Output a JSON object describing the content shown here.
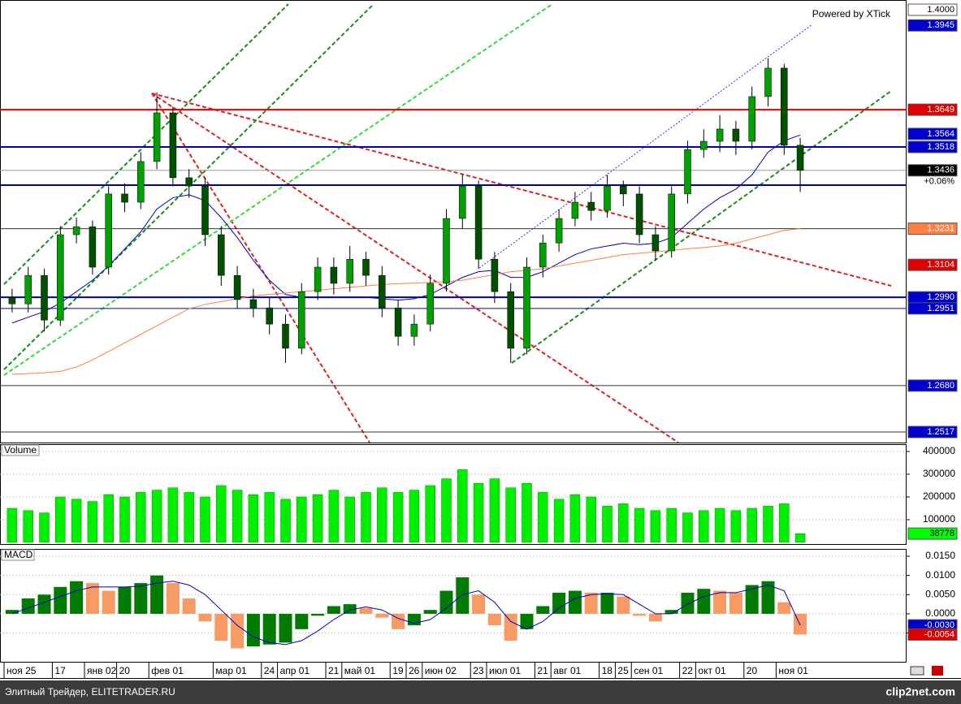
{
  "chart_data": [
    {
      "type": "candlestick",
      "watermark": "Powered by XTick",
      "categories": [
        "ноя 25",
        null,
        null,
        "17",
        null,
        "янв 02",
        null,
        "20",
        null,
        "фев 01",
        null,
        null,
        null,
        "мар 01",
        null,
        null,
        "24",
        "апр 01",
        null,
        null,
        "21",
        "май 01",
        null,
        null,
        "19",
        "26",
        "июн 02",
        null,
        null,
        "23",
        "июл 01",
        null,
        null,
        "21",
        "авг 01",
        null,
        null,
        "18",
        "25",
        "сен 01",
        null,
        null,
        "22",
        "окт 01",
        null,
        null,
        "20",
        null,
        "ноя 01",
        null
      ],
      "open": [
        1.299,
        1.2967,
        1.3067,
        1.291,
        1.321,
        1.3238,
        1.3096,
        1.3353,
        1.3324,
        1.3467,
        1.3638,
        1.341,
        1.3381,
        1.321,
        1.3067,
        1.2982,
        1.2953,
        1.2896,
        1.2811,
        1.301,
        1.3096,
        1.3039,
        1.3124,
        1.3067,
        1.2953,
        1.2853,
        1.2896,
        1.3039,
        1.3267,
        1.3381,
        1.3124,
        1.301,
        1.2811,
        1.3096,
        1.3181,
        1.3267,
        1.3324,
        1.3295,
        1.3381,
        1.3353,
        1.321,
        1.3153,
        1.3353,
        1.3509,
        1.3538,
        1.3581,
        1.3538,
        1.3695,
        1.3795,
        1.3524
      ],
      "high": [
        1.302,
        1.3097,
        1.309,
        1.324,
        1.327,
        1.326,
        1.338,
        1.339,
        1.35,
        1.371,
        1.366,
        1.344,
        1.341,
        1.324,
        1.31,
        1.302,
        1.299,
        1.293,
        1.304,
        1.313,
        1.313,
        1.317,
        1.315,
        1.31,
        1.298,
        1.293,
        1.307,
        1.33,
        1.342,
        1.34,
        1.315,
        1.304,
        1.313,
        1.321,
        1.33,
        1.336,
        1.336,
        1.342,
        1.34,
        1.338,
        1.324,
        1.338,
        1.354,
        1.358,
        1.363,
        1.361,
        1.373,
        1.383,
        1.381,
        1.355
      ],
      "low": [
        1.2937,
        1.2937,
        1.287,
        1.289,
        1.318,
        1.307,
        1.307,
        1.329,
        1.33,
        1.344,
        1.338,
        1.334,
        1.317,
        1.303,
        1.295,
        1.292,
        1.286,
        1.276,
        1.279,
        1.298,
        1.3,
        1.301,
        1.303,
        1.292,
        1.282,
        1.282,
        1.287,
        1.301,
        1.323,
        1.309,
        1.297,
        1.276,
        1.279,
        1.306,
        1.315,
        1.324,
        1.326,
        1.327,
        1.331,
        1.318,
        1.312,
        1.313,
        1.332,
        1.348,
        1.35,
        1.349,
        1.351,
        1.366,
        1.349,
        1.336
      ],
      "close": [
        1.2967,
        1.3067,
        1.291,
        1.321,
        1.3238,
        1.3096,
        1.3353,
        1.3324,
        1.3467,
        1.3638,
        1.341,
        1.3381,
        1.321,
        1.3067,
        1.2982,
        1.2953,
        1.2896,
        1.2811,
        1.301,
        1.3096,
        1.3039,
        1.3124,
        1.3067,
        1.2953,
        1.2853,
        1.2896,
        1.3039,
        1.3267,
        1.3381,
        1.3124,
        1.301,
        1.2811,
        1.3096,
        1.3181,
        1.3267,
        1.3324,
        1.3295,
        1.3381,
        1.3353,
        1.321,
        1.3153,
        1.3353,
        1.3509,
        1.3538,
        1.3581,
        1.3538,
        1.3695,
        1.3795,
        1.3524,
        1.3436
      ],
      "up_color": "#00a000",
      "down_color": "#005000",
      "overlays": [
        {
          "color": "#0000cc",
          "values": [
            1.29,
            1.292,
            1.294,
            1.297,
            1.301,
            1.305,
            1.31,
            1.316,
            1.322,
            1.33,
            1.334,
            1.335,
            1.333,
            1.327,
            1.32,
            1.312,
            1.305,
            1.3,
            1.299,
            1.299,
            1.299,
            1.299,
            1.299,
            1.2985,
            1.298,
            1.2985,
            1.3,
            1.303,
            1.306,
            1.308,
            1.3085,
            1.306,
            1.306,
            1.308,
            1.311,
            1.314,
            1.316,
            1.317,
            1.318,
            1.3175,
            1.318,
            1.32,
            1.325,
            1.33,
            1.334,
            1.337,
            1.342,
            1.35,
            1.354,
            1.356
          ]
        },
        {
          "color": "#ff8040",
          "values": [
            1.272,
            1.2722,
            1.2725,
            1.273,
            1.2745,
            1.277,
            1.28,
            1.283,
            1.286,
            1.289,
            1.292,
            1.295,
            1.2965,
            1.2975,
            1.2985,
            1.2995,
            1.3,
            1.3005,
            1.301,
            1.3015,
            1.302,
            1.3025,
            1.303,
            1.3035,
            1.3038,
            1.304,
            1.3042,
            1.3045,
            1.305,
            1.306,
            1.307,
            1.308,
            1.3085,
            1.309,
            1.31,
            1.311,
            1.312,
            1.313,
            1.314,
            1.3145,
            1.315,
            1.3155,
            1.316,
            1.3165,
            1.317,
            1.318,
            1.3195,
            1.321,
            1.3225,
            1.3231
          ]
        }
      ],
      "levels": [
        {
          "value": 1.3649,
          "color": "#e00000",
          "width": 2
        },
        {
          "value": 1.3518,
          "color": "#0000aa",
          "width": 2
        },
        {
          "value": 1.3436,
          "color": "#999999",
          "width": 1
        },
        {
          "value": 1.3384,
          "color": "#0000aa",
          "width": 2
        },
        {
          "value": 1.3231,
          "color": "#333333",
          "width": 1
        },
        {
          "value": 1.299,
          "color": "#0000aa",
          "width": 2
        },
        {
          "value": 1.2951,
          "color": "#0000aa",
          "width": 1
        },
        {
          "value": 1.268,
          "color": "#333333",
          "width": 1
        },
        {
          "value": 1.2517,
          "color": "#333333",
          "width": 1
        }
      ],
      "tags": [
        {
          "value": 1.4,
          "label": "1.4000",
          "bg": "#ffffff",
          "fg": "#000000"
        },
        {
          "value": 1.3945,
          "label": "1.3945",
          "bg": "#0000cc",
          "fg": "#ffffff"
        },
        {
          "value": 1.3649,
          "label": "1.3649",
          "bg": "#e00000",
          "fg": "#ffffff"
        },
        {
          "value": 1.3564,
          "label": "1.3564",
          "bg": "#0000cc",
          "fg": "#ffffff"
        },
        {
          "value": 1.3518,
          "label": "1.3518",
          "bg": "#0000cc",
          "fg": "#ffffff"
        },
        {
          "value": 1.3436,
          "label": "1.3436",
          "bg": "#000000",
          "fg": "#ffffff"
        },
        {
          "value": 1.3231,
          "label": "1.3231",
          "bg": "#ff8040",
          "fg": "#ffffff"
        },
        {
          "value": 1.3104,
          "label": "1.3104",
          "bg": "#e00000",
          "fg": "#ffffff"
        },
        {
          "value": 1.299,
          "label": "1.2990",
          "bg": "#0000cc",
          "fg": "#ffffff"
        },
        {
          "value": 1.2951,
          "label": "1.2951",
          "bg": "#0000cc",
          "fg": "#ffffff"
        },
        {
          "value": 1.268,
          "label": "1.2680",
          "bg": "#0000cc",
          "fg": "#ffffff"
        },
        {
          "value": 1.2517,
          "label": "1.2517",
          "bg": "#0000cc",
          "fg": "#ffffff"
        }
      ],
      "change_label": "+0.06%",
      "ylim": [
        1.248,
        1.402
      ]
    },
    {
      "type": "bar",
      "title": "Volume",
      "color": "#00ee00",
      "values": [
        150000,
        140000,
        130000,
        200000,
        190000,
        180000,
        210000,
        200000,
        220000,
        230000,
        240000,
        220000,
        200000,
        250000,
        230000,
        210000,
        220000,
        190000,
        200000,
        210000,
        230000,
        200000,
        220000,
        240000,
        220000,
        230000,
        250000,
        280000,
        320000,
        260000,
        280000,
        240000,
        260000,
        220000,
        190000,
        210000,
        200000,
        160000,
        170000,
        150000,
        140000,
        150000,
        130000,
        140000,
        150000,
        140000,
        150000,
        160000,
        170000,
        38778
      ],
      "ylim": [
        0,
        428571
      ],
      "yticks": [
        100000,
        200000,
        300000,
        400000
      ],
      "grid": true,
      "tags": [
        {
          "value": 38778,
          "label": "38778",
          "bg": "#00ff00",
          "fg": "#000000"
        }
      ]
    },
    {
      "type": "histogram-macd",
      "title": "MACD",
      "up_color": "#007a00",
      "down_color": "#f79a63",
      "values": [
        0.001,
        0.004,
        0.005,
        0.007,
        0.0085,
        0.008,
        0.006,
        0.007,
        0.008,
        0.01,
        0.008,
        0.004,
        -0.002,
        -0.007,
        -0.009,
        -0.0085,
        -0.008,
        -0.0075,
        -0.004,
        -0.0005,
        0.002,
        0.0025,
        0.0015,
        -0.001,
        -0.004,
        -0.003,
        0.001,
        0.006,
        0.0095,
        0.005,
        -0.003,
        -0.007,
        -0.004,
        0.002,
        0.0055,
        0.006,
        0.0055,
        0.0055,
        0.0045,
        -0.0005,
        -0.002,
        0.001,
        0.0055,
        0.0065,
        0.006,
        0.0055,
        0.0075,
        0.0085,
        0.003,
        -0.0054
      ],
      "signal_color": "#0000cc",
      "signal_values": [
        0.0,
        0.0015,
        0.003,
        0.0045,
        0.006,
        0.007,
        0.007,
        0.007,
        0.0072,
        0.008,
        0.0085,
        0.0075,
        0.005,
        0.001,
        -0.003,
        -0.006,
        -0.0075,
        -0.008,
        -0.007,
        -0.0045,
        -0.0015,
        0.001,
        0.0018,
        0.001,
        -0.0012,
        -0.0025,
        -0.0015,
        0.0015,
        0.005,
        0.006,
        0.003,
        -0.002,
        -0.004,
        -0.002,
        0.0015,
        0.004,
        0.005,
        0.0052,
        0.005,
        0.0025,
        0.0,
        0.0,
        0.0025,
        0.0045,
        0.0055,
        0.0055,
        0.0065,
        0.0075,
        0.006,
        -0.003
      ],
      "ylim": [
        -0.0125,
        0.0167
      ],
      "yticks": [
        {
          "value": 0.015,
          "label": "0.0150"
        },
        {
          "value": 0.01,
          "label": "0.0100"
        },
        {
          "value": 0.005,
          "label": "0.0050"
        },
        {
          "value": 0,
          "label": "0.0000"
        },
        {
          "value": -0.005,
          "label": "-0.0050"
        }
      ],
      "grid": true,
      "tags": [
        {
          "value": -0.003,
          "label": "-0.0030",
          "bg": "#0000cc",
          "fg": "#ffffff"
        },
        {
          "value": -0.0054,
          "label": "-0.0054",
          "bg": "#e00000",
          "fg": "#ffffff"
        }
      ]
    }
  ],
  "footer": {
    "left": "Элитный Трейдер, ELITETRADER.RU",
    "right": "clip2net.com"
  }
}
